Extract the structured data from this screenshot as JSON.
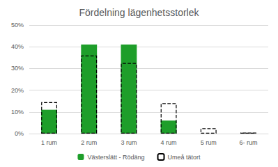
{
  "chart_data": {
    "type": "bar",
    "title": "Fördelning lägenhetsstorlek",
    "categories": [
      "1 rum",
      "2 rum",
      "3 rum",
      "4 rum",
      "5 rum",
      "6- rum"
    ],
    "series": [
      {
        "name": "Västerslätt - Rödäng",
        "color": "#1e9e2a",
        "values": [
          11,
          41,
          41,
          6,
          0,
          0
        ]
      },
      {
        "name": "Umeå tätort",
        "color": "#000000",
        "line_style": "dashed",
        "values": [
          14.5,
          36,
          32.5,
          14,
          2.5,
          0.5
        ]
      }
    ],
    "ylim": [
      0,
      50
    ],
    "yticks": [
      {
        "value": 0,
        "label": "0%"
      },
      {
        "value": 10,
        "label": "10%"
      },
      {
        "value": 20,
        "label": "20%"
      },
      {
        "value": 30,
        "label": "30%"
      },
      {
        "value": 40,
        "label": "40%"
      },
      {
        "value": 50,
        "label": "50%"
      }
    ],
    "grid": true,
    "legend": "bottom"
  }
}
